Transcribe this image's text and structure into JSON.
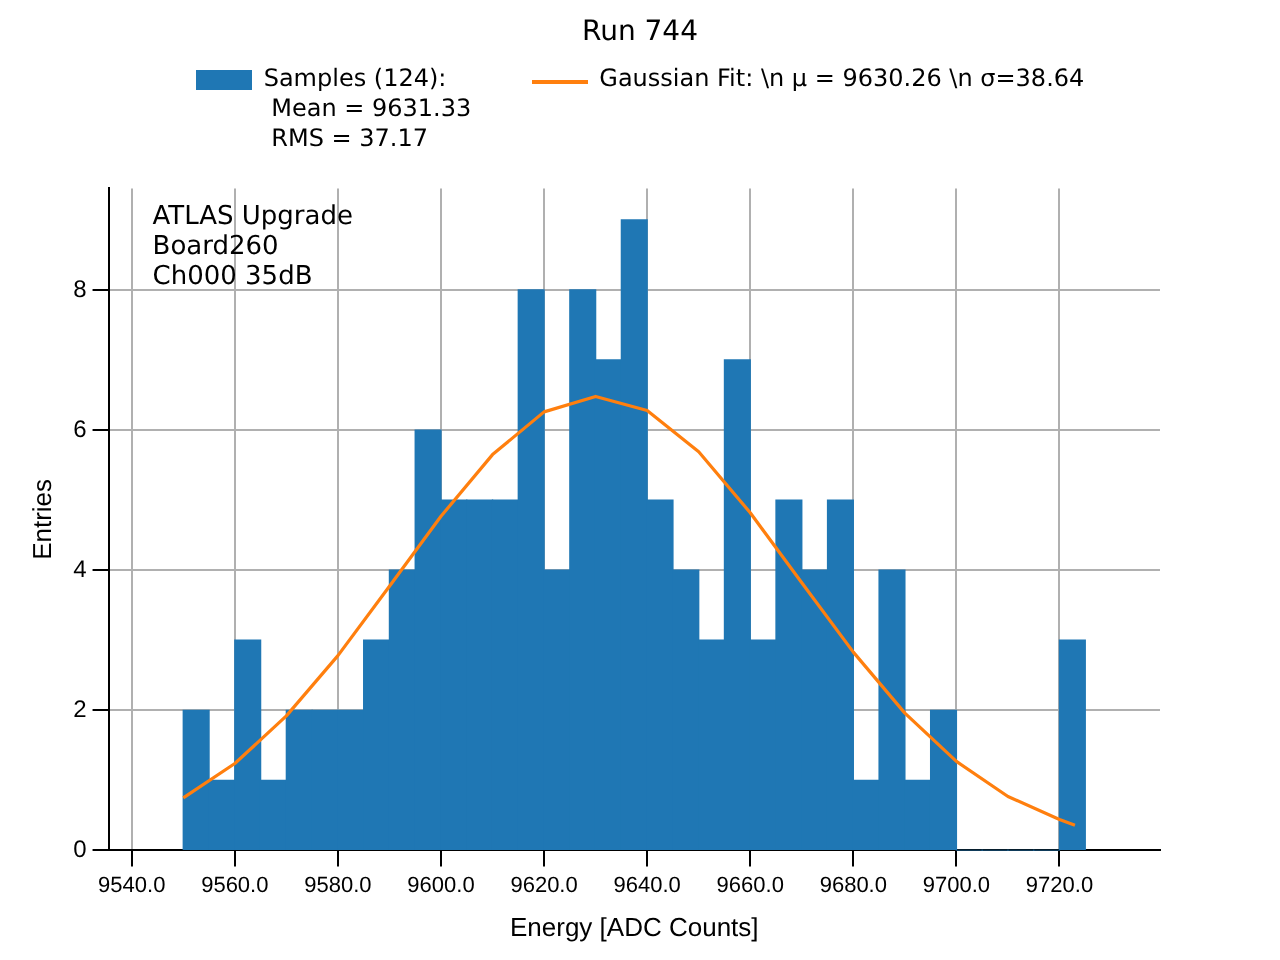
{
  "chart_data": {
    "type": "histogram",
    "title": "Run 744",
    "xlabel": "Energy [ADC Counts]",
    "ylabel": "Entries",
    "annotations": [
      "ATLAS Upgrade\nBoard260\nCh000 35dB"
    ],
    "bins": [
      9550,
      9555,
      9560,
      9565,
      9570,
      9575,
      9580,
      9585,
      9590,
      9595,
      9600,
      9605,
      9610,
      9615,
      9620,
      9625,
      9630,
      9635,
      9640,
      9645,
      9650,
      9655,
      9660,
      9665,
      9670,
      9675,
      9680,
      9685,
      9690,
      9695,
      9700,
      9705,
      9710,
      9715,
      9720,
      9725
    ],
    "series": [
      {
        "name": "Samples (124):\n Mean = 9631.33\n RMS = 37.17",
        "color": "#1f77b4",
        "values": [
          2,
          1,
          3,
          1,
          2,
          2,
          2,
          3,
          4,
          6,
          5,
          5,
          5,
          8,
          4,
          8,
          7,
          9,
          5,
          4,
          3,
          7,
          3,
          5,
          4,
          5,
          1,
          4,
          1,
          2,
          0,
          0,
          0,
          0,
          3
        ]
      },
      {
        "type": "line",
        "name": "Gaussian Fit: \\n μ = 9630.26 \\n σ=38.64",
        "color": "#ff7f0e",
        "marker": "none",
        "x": [
          9550,
          9560,
          9570,
          9580,
          9590,
          9600,
          9610,
          9620,
          9630,
          9640,
          9650,
          9660,
          9670,
          9680,
          9690,
          9700,
          9710,
          9720,
          9723
        ],
        "values": [
          0.75,
          1.24,
          1.92,
          2.78,
          3.77,
          4.77,
          5.65,
          6.26,
          6.48,
          6.28,
          5.69,
          4.82,
          3.82,
          2.83,
          1.96,
          1.27,
          0.77,
          0.44,
          0.36
        ]
      }
    ],
    "xlim": [
      9535.5,
      9739.5
    ],
    "xticks": [
      {
        "value": 9540,
        "label": "9540.0"
      },
      {
        "value": 9560,
        "label": "9560.0"
      },
      {
        "value": 9580,
        "label": "9580.0"
      },
      {
        "value": 9600,
        "label": "9600.0"
      },
      {
        "value": 9620,
        "label": "9620.0"
      },
      {
        "value": 9640,
        "label": "9640.0"
      },
      {
        "value": 9660,
        "label": "9660.0"
      },
      {
        "value": 9680,
        "label": "9680.0"
      },
      {
        "value": 9700,
        "label": "9700.0"
      },
      {
        "value": 9720,
        "label": "9720.0"
      }
    ],
    "ylim": [
      0,
      9.45
    ],
    "yticks": [
      0,
      2,
      4,
      6,
      8
    ],
    "grid": true,
    "legend": "top"
  }
}
